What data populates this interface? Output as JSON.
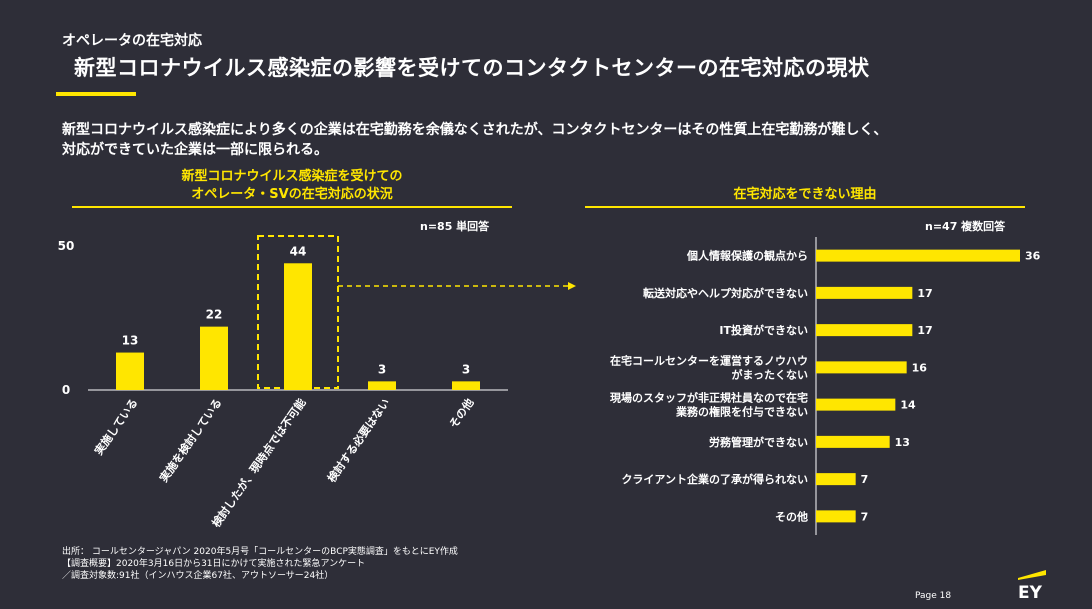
{
  "header": {
    "section": "オペレータの在宅対応",
    "title": "新型コロナウイルス感染症の影響を受けてのコンタクトセンターの在宅対応の現状"
  },
  "intro": {
    "line1": "新型コロナウイルス感染症により多くの企業は在宅勤務を余儀なくされたが、コンタクトセンターはその性質上在宅勤務が難しく、",
    "line2": "対応ができていた企業は一部に限られる。"
  },
  "left_panel": {
    "title_line1": "新型コロナウイルス感染症を受けての",
    "title_line2": "オペレータ・SVの在宅対応の状況",
    "note": "n=85 単回答"
  },
  "right_panel": {
    "title": "在宅対応をできない理由",
    "note": "n=47 複数回答"
  },
  "footer": {
    "source_line1": "出所： コールセンタージャパン 2020年5月号「コールセンターのBCP実態調査」をもとにEY作成",
    "source_line2": "【調査概要】2020年3月16日から31日にかけて実施された緊急アンケート",
    "source_line3": "／調査対象数:91社（インハウス企業67社、アウトソーサー24社）",
    "page": "Page 18",
    "logo": "EY"
  },
  "colors": {
    "background": "#2e2e38",
    "accent": "#ffe600",
    "text": "#ffffff"
  },
  "chart_data": [
    {
      "type": "bar",
      "orientation": "vertical",
      "categories": [
        "実施している",
        "実施を検討している",
        "検討したが、現時点では不可能",
        "検討する必要はない",
        "その他"
      ],
      "values": [
        13,
        22,
        44,
        3,
        3
      ],
      "ylim": [
        0,
        50
      ],
      "yticks": [
        0,
        50
      ],
      "grid": false,
      "highlight_category": "検討したが、現時点では不可能"
    },
    {
      "type": "bar",
      "orientation": "horizontal",
      "categories": [
        [
          "個人情報保護の観点から"
        ],
        [
          "転送対応やヘルプ対応ができない"
        ],
        [
          "IT投資ができない"
        ],
        [
          "在宅コールセンターを運営するノウハウ",
          "がまったくない"
        ],
        [
          "現場のスタッフが非正規社員なので在宅",
          "業務の権限を付与できない"
        ],
        [
          "労務管理ができない"
        ],
        [
          "クライアント企業の了承が得られない"
        ],
        [
          "その他"
        ]
      ],
      "values": [
        36,
        17,
        17,
        16,
        14,
        13,
        7,
        7
      ],
      "xlim": [
        0,
        36
      ],
      "grid": false
    }
  ]
}
